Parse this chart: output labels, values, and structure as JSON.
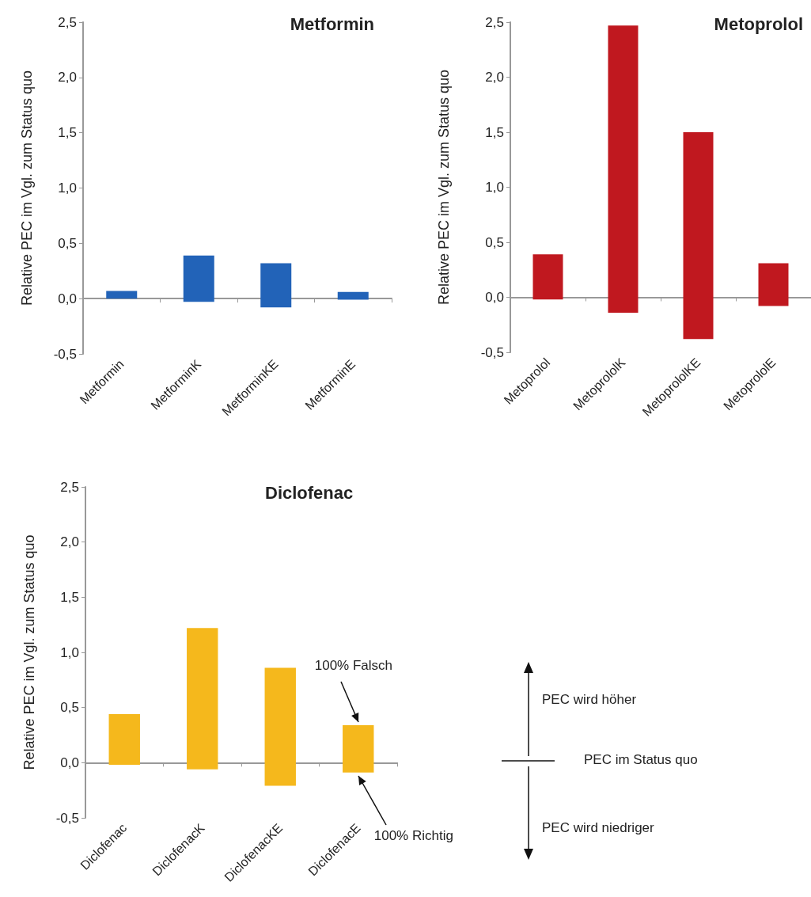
{
  "chart_data": [
    {
      "type": "bar",
      "title": "Metformin",
      "ylabel": "Relative PEC im Vgl. zum Status quo",
      "categories": [
        "Metformin",
        "MetforminK",
        "MetforminKE",
        "MetforminE"
      ],
      "base": [
        0,
        -0.03,
        -0.08,
        -0.01
      ],
      "values": [
        0.07,
        0.42,
        0.4,
        0.07
      ],
      "color": "#2263b8",
      "ylim": [
        -0.5,
        2.5
      ],
      "yticks": [
        {
          "value": -0.5,
          "label": "-0,5"
        },
        {
          "value": 0,
          "label": "0,0"
        },
        {
          "value": 0.5,
          "label": "0,5"
        },
        {
          "value": 1,
          "label": "1,0"
        },
        {
          "value": 1.5,
          "label": "1,5"
        },
        {
          "value": 2,
          "label": "2,0"
        },
        {
          "value": 2.5,
          "label": "2,5"
        }
      ]
    },
    {
      "type": "bar",
      "title": "Metoprolol",
      "ylabel": "Relative PEC im Vgl. zum Status quo",
      "categories": [
        "Metoprolol",
        "MetoprololK",
        "MetoprololKE",
        "MetoprololE"
      ],
      "base": [
        -0.02,
        -0.14,
        -0.38,
        -0.08
      ],
      "values": [
        0.41,
        2.61,
        1.88,
        0.39
      ],
      "color": "#c0181f",
      "ylim": [
        -0.5,
        2.5
      ],
      "yticks": [
        {
          "value": -0.5,
          "label": "-0,5"
        },
        {
          "value": 0,
          "label": "0,0"
        },
        {
          "value": 0.5,
          "label": "0,5"
        },
        {
          "value": 1,
          "label": "1,0"
        },
        {
          "value": 1.5,
          "label": "1,5"
        },
        {
          "value": 2,
          "label": "2,0"
        },
        {
          "value": 2.5,
          "label": "2,5"
        }
      ]
    },
    {
      "type": "bar",
      "title": "Diclofenac",
      "ylabel": "Relative PEC im Vgl. zum Status quo",
      "categories": [
        "Diclofenac",
        "DiclofenacK",
        "DiclofenacKE",
        "DiclofenacE"
      ],
      "base": [
        -0.02,
        -0.06,
        -0.21,
        -0.09
      ],
      "values": [
        0.46,
        1.28,
        1.07,
        0.43
      ],
      "color": "#f5b81c",
      "ylim": [
        -0.5,
        2.5
      ],
      "yticks": [
        {
          "value": -0.5,
          "label": "-0,5"
        },
        {
          "value": 0,
          "label": "0,0"
        },
        {
          "value": 0.5,
          "label": "0,5"
        },
        {
          "value": 1,
          "label": "1,0"
        },
        {
          "value": 1.5,
          "label": "1,5"
        },
        {
          "value": 2,
          "label": "2,0"
        },
        {
          "value": 2.5,
          "label": "2,5"
        }
      ],
      "annotations": [
        {
          "text": "100% Falsch",
          "x": "DiclofenacE",
          "y": 0.34
        },
        {
          "text": "100% Richtig",
          "x": "DiclofenacE",
          "y": -0.09
        }
      ]
    },
    {
      "type": "other",
      "annotations": [
        "PEC wird höher",
        "PEC im Status quo",
        "PEC wird niedriger"
      ]
    }
  ]
}
